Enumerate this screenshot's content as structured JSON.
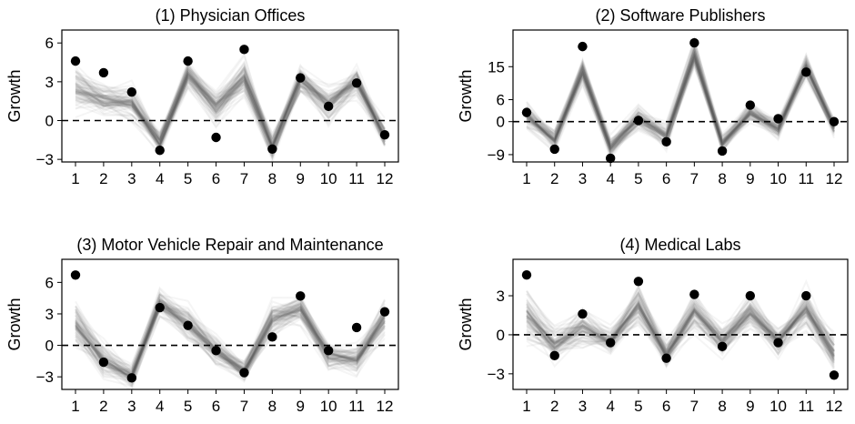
{
  "chart_data": [
    {
      "type": "scatter",
      "title": "(1) Physician Offices",
      "ylabel": "Growth",
      "xlabel": "",
      "x": [
        1,
        2,
        3,
        4,
        5,
        6,
        7,
        8,
        9,
        10,
        11,
        12
      ],
      "ylim": [
        -3.2,
        7.0
      ],
      "yticks": [
        -3,
        0,
        3,
        6
      ],
      "reference_line": 0,
      "points": [
        4.6,
        3.7,
        2.2,
        -2.3,
        4.6,
        -1.3,
        5.5,
        -2.2,
        3.3,
        1.1,
        2.9,
        -1.1
      ],
      "band": {
        "center": [
          2.5,
          1.6,
          1.3,
          -1.7,
          3.5,
          1.0,
          3.3,
          -2.0,
          3.2,
          1.3,
          3.0,
          -1.2
        ],
        "spread": [
          1.6,
          1.3,
          1.2,
          1.0,
          1.0,
          1.2,
          1.4,
          1.0,
          1.0,
          1.3,
          1.0,
          1.0
        ]
      }
    },
    {
      "type": "scatter",
      "title": "(2) Software Publishers",
      "ylabel": "Growth",
      "xlabel": "",
      "x": [
        1,
        2,
        3,
        4,
        5,
        6,
        7,
        8,
        9,
        10,
        11,
        12
      ],
      "ylim": [
        -11,
        25
      ],
      "yticks": [
        -9,
        0,
        6,
        15
      ],
      "reference_line": 0,
      "points": [
        2.5,
        -7.5,
        20.5,
        -10.0,
        0.3,
        -5.5,
        21.5,
        -8.0,
        4.5,
        0.8,
        13.5,
        0.0
      ],
      "band": {
        "center": [
          1.5,
          -5.0,
          14.0,
          -7.0,
          1.0,
          -4.0,
          18.0,
          -6.0,
          2.5,
          -2.0,
          15.0,
          -1.5
        ],
        "spread": [
          4.0,
          3.0,
          3.5,
          2.5,
          3.0,
          3.0,
          3.5,
          2.5,
          2.5,
          2.5,
          3.0,
          2.0
        ]
      }
    },
    {
      "type": "scatter",
      "title": "(3) Motor Vehicle Repair and Maintenance",
      "ylabel": "Growth",
      "xlabel": "",
      "x": [
        1,
        2,
        3,
        4,
        5,
        6,
        7,
        8,
        9,
        10,
        11,
        12
      ],
      "ylim": [
        -4.2,
        8.2
      ],
      "yticks": [
        -3,
        0,
        3,
        6
      ],
      "reference_line": 0,
      "points": [
        6.7,
        -1.6,
        -3.1,
        3.6,
        1.9,
        -0.5,
        -2.6,
        0.8,
        4.7,
        -0.5,
        1.7,
        3.2
      ],
      "band": {
        "center": [
          2.0,
          -1.5,
          -3.0,
          4.0,
          2.0,
          -0.5,
          -2.5,
          2.5,
          3.5,
          -1.0,
          -1.5,
          2.5
        ],
        "spread": [
          2.0,
          1.5,
          1.0,
          1.2,
          1.5,
          1.3,
          1.0,
          1.5,
          1.3,
          1.3,
          1.2,
          1.8
        ]
      }
    },
    {
      "type": "scatter",
      "title": "(4) Medical Labs",
      "ylabel": "Growth",
      "xlabel": "",
      "x": [
        1,
        2,
        3,
        4,
        5,
        6,
        7,
        8,
        9,
        10,
        11,
        12
      ],
      "ylim": [
        -4.2,
        5.8
      ],
      "yticks": [
        -3,
        0,
        3
      ],
      "reference_line": 0,
      "points": [
        4.6,
        -1.6,
        1.6,
        -0.6,
        4.1,
        -1.8,
        3.1,
        -0.9,
        3.0,
        -0.6,
        3.0,
        -3.1
      ],
      "band": {
        "center": [
          1.5,
          -0.8,
          0.5,
          -0.5,
          2.2,
          -1.5,
          1.8,
          -0.5,
          1.8,
          -0.5,
          2.0,
          -1.5
        ],
        "spread": [
          1.8,
          1.2,
          1.2,
          1.0,
          1.5,
          1.0,
          1.3,
          1.0,
          1.2,
          1.0,
          1.4,
          1.3
        ]
      }
    }
  ]
}
